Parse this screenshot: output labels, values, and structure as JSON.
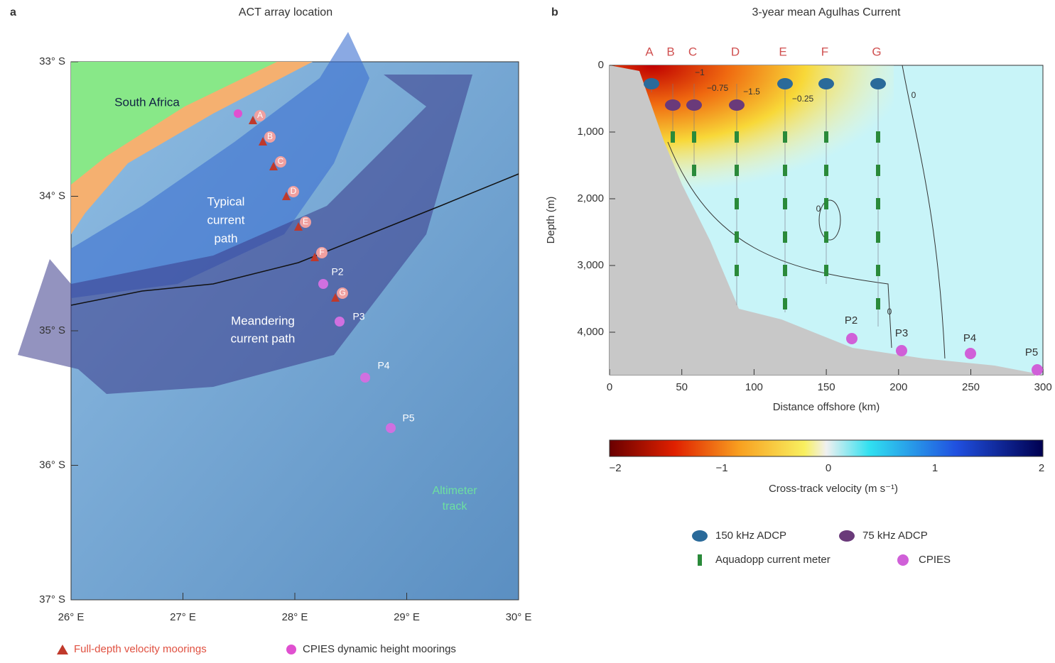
{
  "panel_a": {
    "letter": "a",
    "title": "ACT array location",
    "lat_labels": [
      "33° S",
      "34° S",
      "35° S",
      "36° S",
      "37° S"
    ],
    "lon_labels": [
      "26° E",
      "27° E",
      "28° E",
      "29° E",
      "30° E"
    ],
    "land_label": "South Africa",
    "typical_path": [
      "Typical",
      "current",
      "path"
    ],
    "meander_path": [
      "Meandering",
      "current path"
    ],
    "altimeter": [
      "Altimeter",
      "track"
    ],
    "moorings": [
      "A",
      "B",
      "C",
      "D",
      "E",
      "F",
      "G"
    ],
    "cpies": [
      "P2",
      "P3",
      "P4",
      "P5"
    ],
    "legend": [
      "Full-depth velocity moorings",
      "CPIES dynamic height moorings"
    ]
  },
  "panel_b": {
    "letter": "b",
    "title": "3-year mean Agulhas Current",
    "moorings": [
      "A",
      "B",
      "C",
      "D",
      "E",
      "F",
      "G"
    ],
    "y_ticks": [
      "0",
      "1,000",
      "2,000",
      "3,000",
      "4,000"
    ],
    "y_label": "Depth (m)",
    "x_ticks": [
      "0",
      "50",
      "100",
      "150",
      "200",
      "250",
      "300"
    ],
    "x_label": "Distance offshore (km)",
    "contour_labels": [
      "−1",
      "−0.75",
      "−1.5",
      "−0.25",
      "0",
      "0",
      "0"
    ],
    "cpies": [
      "P2",
      "P3",
      "P4",
      "P5"
    ],
    "colorbar_ticks": [
      "−2",
      "−1",
      "0",
      "1",
      "2"
    ],
    "colorbar_label": "Cross-track velocity (m s⁻¹)",
    "legend": [
      "150 kHz ADCP",
      "75 kHz ADCP",
      "Aquadopp current meter",
      "CPIES"
    ]
  }
}
